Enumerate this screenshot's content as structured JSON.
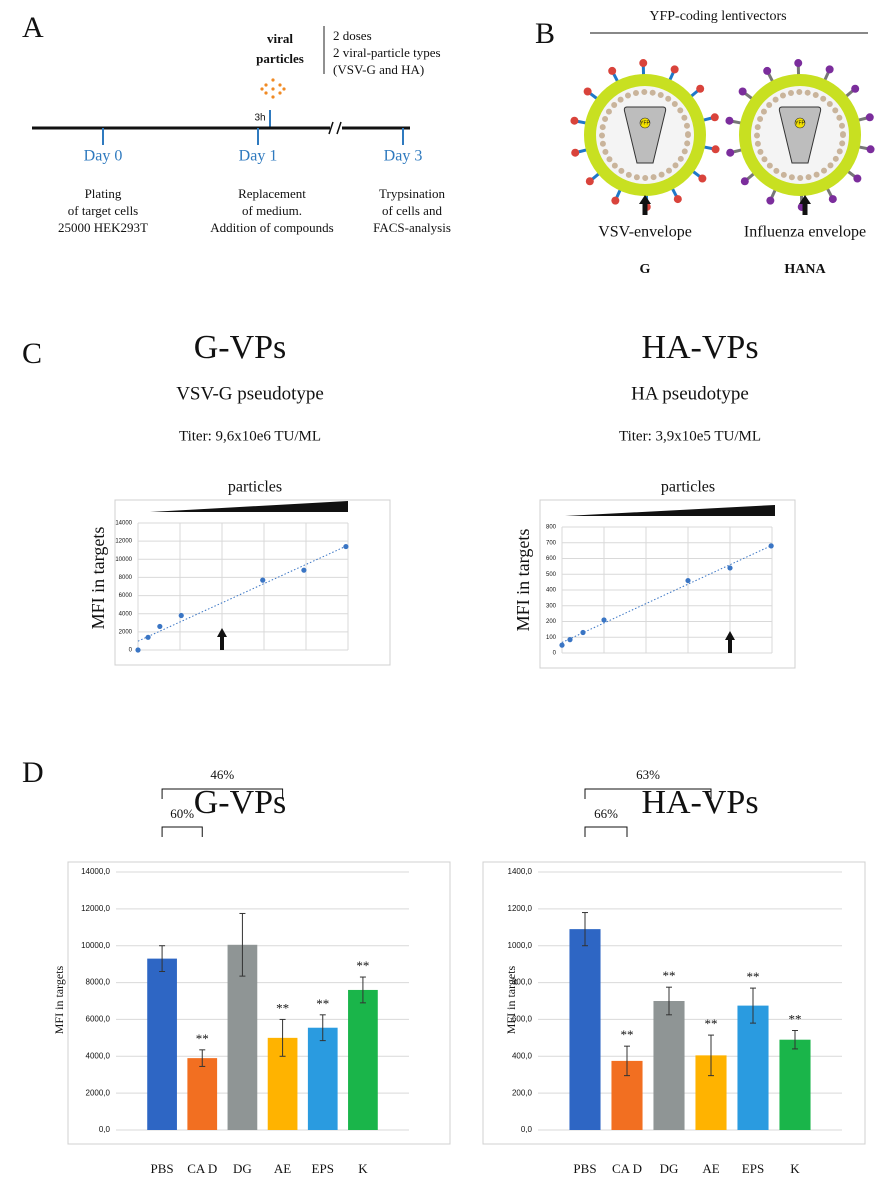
{
  "panels": {
    "A": {
      "label": "A",
      "viral_particles": [
        "viral",
        "particles"
      ],
      "notes": [
        "2 doses",
        "2 viral-particle types",
        "(VSV-G and HA)"
      ],
      "time_mark": "3h",
      "days": [
        "Day 0",
        "Day 1",
        "Day 3"
      ],
      "steps": [
        [
          "Plating",
          "of target cells",
          "25000 HEK293T"
        ],
        [
          "Replacement",
          "of medium.",
          "Addition of compounds"
        ],
        [
          "Trypsination",
          "of cells and",
          "FACS-analysis"
        ]
      ]
    },
    "B": {
      "label": "B",
      "title": "YFP-coding lentivectors",
      "gene": "YFP",
      "envelopes": [
        "VSV-envelope",
        "Influenza envelope"
      ],
      "names": [
        "G",
        "HANA"
      ]
    },
    "C": {
      "label": "C",
      "columns": [
        {
          "title": "G-VPs",
          "subtitle": "VSV-G pseudotype",
          "titer": "Titer: 9,6x10e6 TU/ML"
        },
        {
          "title": "HA-VPs",
          "subtitle": "HA pseudotype",
          "titer": "Titer: 3,9x10e5 TU/ML"
        }
      ]
    },
    "D": {
      "label": "D",
      "titles": [
        "G-VPs",
        "HA-VPs"
      ]
    }
  },
  "chart_data": [
    {
      "type": "scatter",
      "title": "particles",
      "ylabel": "MFI in targets",
      "color": "#3a75c4",
      "trendline": true,
      "x": [
        0,
        0.24,
        0.52,
        1.03,
        2.97,
        3.95,
        4.95
      ],
      "values": [
        0,
        1400,
        2600,
        3800,
        7700,
        8800,
        11400
      ],
      "xlim": [
        0,
        5
      ],
      "ylim": [
        0,
        14000
      ],
      "yticks": [
        0,
        2000,
        4000,
        6000,
        8000,
        10000,
        12000,
        14000
      ],
      "grid": true
    },
    {
      "type": "scatter",
      "title": "particles",
      "ylabel": "MFI in targets",
      "color": "#3a75c4",
      "trendline": true,
      "x": [
        0,
        0.19,
        0.5,
        1,
        3,
        4,
        4.98
      ],
      "values": [
        50,
        85,
        130,
        210,
        460,
        540,
        680
      ],
      "xlim": [
        0,
        5
      ],
      "ylim": [
        0,
        800
      ],
      "yticks": [
        0,
        100,
        200,
        300,
        400,
        500,
        600,
        700,
        800
      ],
      "grid": true
    },
    {
      "type": "bar",
      "ylabel": "MFI in targets",
      "categories": [
        "PBS",
        "CA D",
        "DG",
        "AE",
        "EPS",
        "K"
      ],
      "values": [
        9300,
        3900,
        10050,
        5000,
        5550,
        7600
      ],
      "errors": [
        700,
        450,
        1700,
        1000,
        700,
        700
      ],
      "colors": [
        "#2e66c4",
        "#f26f21",
        "#8f9595",
        "#ffb300",
        "#2a9be0",
        "#1ab54a"
      ],
      "significance": [
        null,
        "**",
        null,
        "**",
        "**",
        "**"
      ],
      "annotations": [
        "60%",
        "46%"
      ],
      "ylim": [
        0,
        14000
      ],
      "grid": true,
      "yticks": [
        {
          "value": 0,
          "label": "0,0"
        },
        {
          "value": 2000,
          "label": "2000,0"
        },
        {
          "value": 4000,
          "label": "4000,0"
        },
        {
          "value": 6000,
          "label": "6000,0"
        },
        {
          "value": 8000,
          "label": "8000,0"
        },
        {
          "value": 10000,
          "label": "10000,0"
        },
        {
          "value": 12000,
          "label": "12000,0"
        },
        {
          "value": 14000,
          "label": "14000,0"
        }
      ]
    },
    {
      "type": "bar",
      "ylabel": "MFI in targets",
      "categories": [
        "PBS",
        "CA D",
        "DG",
        "AE",
        "EPS",
        "K"
      ],
      "values": [
        1090,
        375,
        700,
        405,
        675,
        490
      ],
      "errors": [
        90,
        80,
        75,
        110,
        95,
        50
      ],
      "colors": [
        "#2e66c4",
        "#f26f21",
        "#8f9595",
        "#ffb300",
        "#2a9be0",
        "#1ab54a"
      ],
      "significance": [
        null,
        "**",
        "**",
        "**",
        "**",
        "**"
      ],
      "annotations": [
        "66%",
        "63%"
      ],
      "ylim": [
        0,
        1400
      ],
      "grid": true,
      "yticks": [
        {
          "value": 0,
          "label": "0,0"
        },
        {
          "value": 200,
          "label": "200,0"
        },
        {
          "value": 400,
          "label": "400,0"
        },
        {
          "value": 600,
          "label": "600,0"
        },
        {
          "value": 800,
          "label": "800,0"
        },
        {
          "value": 1000,
          "label": "1000,0"
        },
        {
          "value": 1200,
          "label": "1200,0"
        },
        {
          "value": 1400,
          "label": "1400,0"
        }
      ]
    }
  ]
}
